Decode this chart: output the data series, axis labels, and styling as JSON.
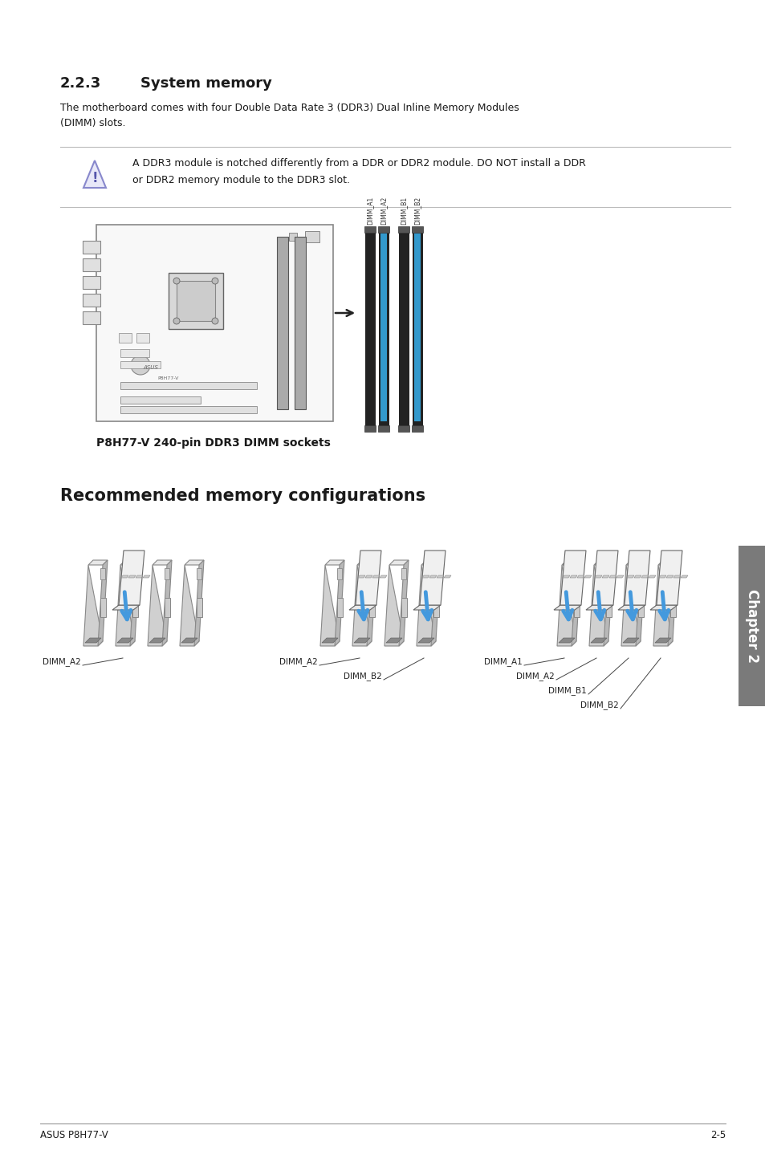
{
  "bg_color": "#ffffff",
  "page_width": 9.54,
  "page_height": 14.38,
  "text_color": "#1a1a1a",
  "line_color": "#bbbbbb",
  "section_num": "2.2.3",
  "section_title": "System memory",
  "body_text": "The motherboard comes with four Double Data Rate 3 (DDR3) Dual Inline Memory Modules\n(DIMM) slots.",
  "note_text_line1": "A DDR3 module is notched differently from a DDR or DDR2 module. DO NOT install a DDR",
  "note_text_line2": "or DDR2 memory module to the DDR3 slot.",
  "mobo_caption": "P8H77-V 240-pin DDR3 DIMM sockets",
  "rec_mem_title": "Recommended memory configurations",
  "footer_left": "ASUS P8H77-V",
  "footer_right": "2-5",
  "sidebar_color": "#7a7a7a",
  "arrow_blue": "#4499dd",
  "dimm_dark": "#444444",
  "dimm_light": "#aaaaaa",
  "board_outline": "#888888",
  "board_fill": "#f8f8f8"
}
